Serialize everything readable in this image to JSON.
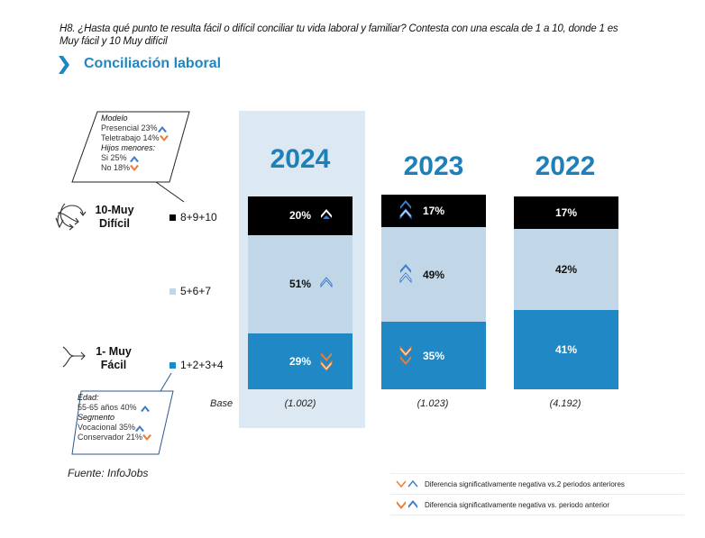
{
  "question": "H8. ¿Hasta qué punto te resulta fácil o difícil conciliar tu vida laboral y familiar? Contesta con una escala de 1 a 10, donde 1 es Muy fácil y 10 Muy difícil",
  "title": "Conciliación laboral",
  "colors": {
    "accent": "#1f86c1",
    "top_segment": "#000000",
    "mid_segment": "#c1d7e8",
    "bottom_segment": "#2088c4",
    "highlight_panel": "#dce8f2",
    "up_arrow": "#3d7cc9",
    "down_arrow": "#ee7d31"
  },
  "scale_labels": {
    "top": "10-Muy Difícil",
    "bottom": "1- Muy Fácil"
  },
  "notes": {
    "top": {
      "heading1": "Modelo",
      "line1": "Presencial 23%",
      "line2": "Teletrabajo 14%",
      "heading2": "Hijos menores:",
      "line3": "Si 25%",
      "line4": "No 18%"
    },
    "bottom": {
      "heading1": "Edad:",
      "line1": "55-65 años 40%",
      "heading2": "Segmento",
      "line2": "Vocacional 35%",
      "line3": "Conservador 21%"
    }
  },
  "base_label": "Base",
  "source": "Fuente: InfoJobs",
  "significance_legend": [
    {
      "label": "Diferencia significativamente negativa vs.2 periodos anteriores",
      "icon": "outline-chevrons"
    },
    {
      "label": "Diferencia significativamente negativa vs. periodo anterior",
      "icon": "solid-chevrons"
    }
  ],
  "chart_data": {
    "type": "bar",
    "stacked": true,
    "orientation": "vertical",
    "title": "Conciliación laboral",
    "categories": [
      "2024",
      "2023",
      "2022"
    ],
    "bases": [
      "(1.002)",
      "(1.023)",
      "(4.192)"
    ],
    "series": [
      {
        "name": "1+2+3+4",
        "values": [
          29,
          35,
          41
        ]
      },
      {
        "name": "5+6+7",
        "values": [
          51,
          49,
          42
        ]
      },
      {
        "name": "8+9+10",
        "values": [
          20,
          17,
          17
        ]
      }
    ],
    "labels": {
      "8+9+10": [
        "20%",
        "17%",
        "17%"
      ],
      "5+6+7": [
        "51%",
        "49%",
        "42%"
      ],
      "1+2+3+4": [
        "29%",
        "35%",
        "41%"
      ]
    },
    "significance_markers": {
      "2024": {
        "8+9+10": "up-solid-white",
        "5+6+7": "up-outline",
        "1+2+3+4": "down-solid-and-outline"
      },
      "2023": {
        "8+9+10": "up-solid-and-outline",
        "5+6+7": "up-solid-and-outline",
        "1+2+3+4": "down-outline-and-solid"
      },
      "2022": {}
    },
    "legend": [
      "8+9+10",
      "5+6+7",
      "1+2+3+4"
    ],
    "ylim": [
      0,
      100
    ],
    "highlighted_category": "2024"
  }
}
